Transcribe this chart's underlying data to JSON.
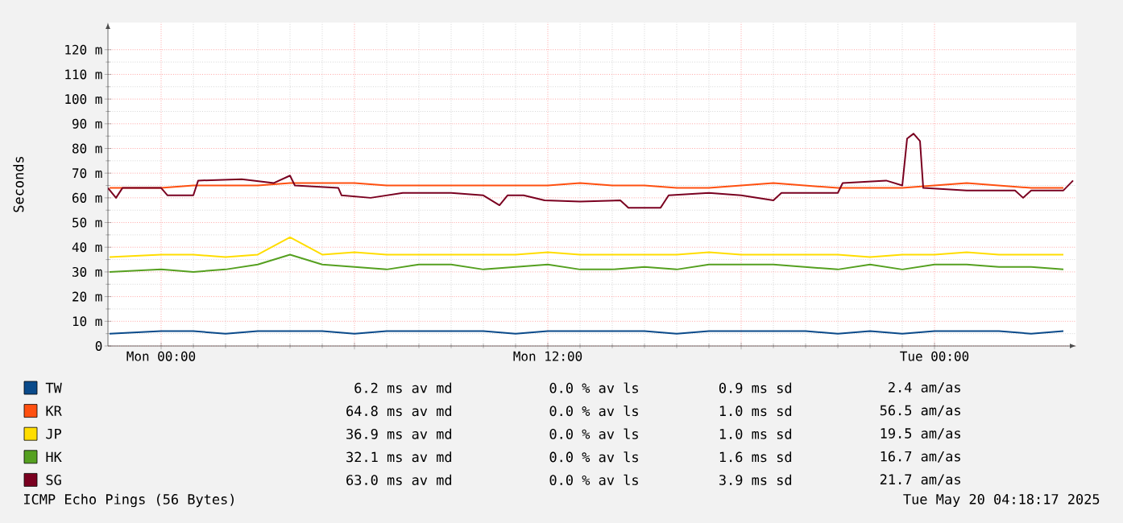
{
  "chart_data": {
    "type": "line",
    "ylabel": "Seconds",
    "x": [
      "2025-05-18T22:24",
      "2025-05-19T00:00",
      "2025-05-19T01:00",
      "2025-05-19T02:00",
      "2025-05-19T03:00",
      "2025-05-19T04:00",
      "2025-05-19T05:00",
      "2025-05-19T06:00",
      "2025-05-19T07:00",
      "2025-05-19T08:00",
      "2025-05-19T09:00",
      "2025-05-19T10:00",
      "2025-05-19T11:00",
      "2025-05-19T12:00",
      "2025-05-19T13:00",
      "2025-05-19T14:00",
      "2025-05-19T15:00",
      "2025-05-19T16:00",
      "2025-05-19T17:00",
      "2025-05-19T18:00",
      "2025-05-19T19:00",
      "2025-05-19T20:00",
      "2025-05-19T21:00",
      "2025-05-19T22:00",
      "2025-05-19T23:00",
      "2025-05-20T00:00",
      "2025-05-20T01:00",
      "2025-05-20T02:00",
      "2025-05-20T03:00",
      "2025-05-20T04:00"
    ],
    "xlim": [
      "2025-05-18T22:21",
      "2025-05-20T04:24"
    ],
    "xticks": [
      {
        "value": "2025-05-19T00:00",
        "label": "Mon 00:00"
      },
      {
        "value": "2025-05-19T06:00",
        "label": null
      },
      {
        "value": "2025-05-19T12:00",
        "label": "Mon 12:00"
      },
      {
        "value": "2025-05-19T18:00",
        "label": null
      },
      {
        "value": "2025-05-20T00:00",
        "label": "Tue 00:00"
      }
    ],
    "ylim": [
      0,
      131
    ],
    "yticks": [
      0,
      {
        "value": 10,
        "label": "10 m"
      },
      {
        "value": 20,
        "label": "20 m"
      },
      {
        "value": 30,
        "label": "30 m"
      },
      {
        "value": 40,
        "label": "40 m"
      },
      {
        "value": 50,
        "label": "50 m"
      },
      {
        "value": 60,
        "label": "60 m"
      },
      {
        "value": 70,
        "label": "70 m"
      },
      {
        "value": 80,
        "label": "80 m"
      },
      {
        "value": 90,
        "label": "90 m"
      },
      {
        "value": 100,
        "label": "100 m"
      },
      {
        "value": 110,
        "label": "110 m"
      },
      {
        "value": 120,
        "label": "120 m"
      }
    ],
    "grid": true,
    "legend": "bottom",
    "series": [
      {
        "name": "TW",
        "color": "#0a4a8a",
        "values": [
          5,
          6,
          6,
          5,
          6,
          6,
          6,
          5,
          6,
          6,
          6,
          6,
          5,
          6,
          6,
          6,
          6,
          5,
          6,
          6,
          6,
          6,
          5,
          6,
          5,
          6,
          6,
          6,
          5,
          6
        ]
      },
      {
        "name": "KR",
        "color": "#ff5010",
        "values": [
          64,
          64,
          65,
          65,
          65,
          66,
          66,
          66,
          65,
          65,
          65,
          65,
          65,
          65,
          66,
          65,
          65,
          64,
          64,
          65,
          66,
          65,
          64,
          64,
          64,
          65,
          66,
          65,
          64,
          64
        ]
      },
      {
        "name": "JP",
        "color": "#ffdd00",
        "values": [
          36,
          37,
          37,
          36,
          37,
          44,
          37,
          38,
          37,
          37,
          37,
          37,
          37,
          38,
          37,
          37,
          37,
          37,
          38,
          37,
          37,
          37,
          37,
          36,
          37,
          37,
          38,
          37,
          37,
          37
        ]
      },
      {
        "name": "HK",
        "color": "#55a020",
        "values": [
          30,
          31,
          30,
          31,
          33,
          37,
          33,
          32,
          31,
          33,
          33,
          31,
          32,
          33,
          31,
          31,
          32,
          31,
          33,
          33,
          33,
          32,
          31,
          33,
          31,
          33,
          33,
          32,
          32,
          31
        ]
      },
      {
        "name": "SG",
        "color": "#7a0020",
        "x": [
          "2025-05-18T22:21",
          "2025-05-18T22:36",
          "2025-05-18T22:48",
          "2025-05-19T00:00",
          "2025-05-19T00:12",
          "2025-05-19T01:00",
          "2025-05-19T01:09",
          "2025-05-19T02:30",
          "2025-05-19T03:30",
          "2025-05-19T04:00",
          "2025-05-19T04:09",
          "2025-05-19T05:30",
          "2025-05-19T05:36",
          "2025-05-19T06:30",
          "2025-05-19T07:30",
          "2025-05-19T09:00",
          "2025-05-19T10:00",
          "2025-05-19T10:30",
          "2025-05-19T10:45",
          "2025-05-19T11:15",
          "2025-05-19T11:54",
          "2025-05-19T13:00",
          "2025-05-19T14:15",
          "2025-05-19T14:30",
          "2025-05-19T15:30",
          "2025-05-19T15:45",
          "2025-05-19T17:00",
          "2025-05-19T18:00",
          "2025-05-19T19:00",
          "2025-05-19T19:15",
          "2025-05-19T21:00",
          "2025-05-19T21:09",
          "2025-05-19T22:30",
          "2025-05-19T23:00",
          "2025-05-19T23:09",
          "2025-05-19T23:21",
          "2025-05-19T23:33",
          "2025-05-19T23:39",
          "2025-05-20T01:00",
          "2025-05-20T02:30",
          "2025-05-20T02:45",
          "2025-05-20T03:00",
          "2025-05-20T04:00",
          "2025-05-20T04:18"
        ],
        "values": [
          64,
          60,
          64,
          64,
          61,
          61,
          67,
          67.5,
          66,
          69,
          65,
          64,
          61,
          60,
          62,
          62,
          61,
          57,
          61,
          61,
          59,
          58.5,
          59,
          56,
          56,
          61,
          62,
          61,
          59,
          62,
          62,
          66,
          67,
          65,
          84,
          86,
          83,
          64,
          63,
          63,
          60,
          63,
          63,
          67
        ]
      }
    ],
    "annotations": [
      "6.2 ms av md",
      "0.0 % av ls",
      "0.9 ms sd",
      "2.4 am/as",
      "64.8 ms av md",
      "0.0 % av ls",
      "1.0 ms sd",
      "56.5 am/as",
      "36.9 ms av md",
      "0.0 % av ls",
      "1.0 ms sd",
      "19.5 am/as",
      "32.1 ms av md",
      "0.0 % av ls",
      "1.6 ms sd",
      "16.7 am/as",
      "63.0 ms av md",
      "0.0 % av ls",
      "3.9 ms sd",
      "21.7 am/as",
      "ICMP Echo Pings (56 Bytes)",
      "Tue May 20 04:18:17 2025"
    ]
  }
}
